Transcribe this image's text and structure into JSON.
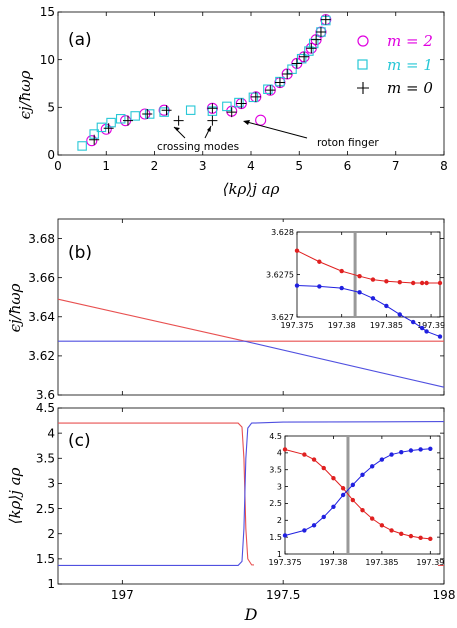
{
  "chart_data": [
    {
      "id": "a",
      "type": "scatter",
      "panel_label": "(a)",
      "xlabel": "⟨k_ρ⟩_j a_ρ",
      "ylabel": "ε_j / ħω_ρ",
      "xlim": [
        0,
        8
      ],
      "ylim": [
        0,
        15
      ],
      "xticks": [
        0,
        1,
        2,
        3,
        4,
        5,
        6,
        7,
        8
      ],
      "yticks": [
        0,
        5,
        10,
        15
      ],
      "legend_position": "top-right",
      "series": [
        {
          "name": "m = 2",
          "marker": "circle",
          "color": "#e000e0",
          "points": [
            [
              0.7,
              1.5
            ],
            [
              1.0,
              2.7
            ],
            [
              1.4,
              3.6
            ],
            [
              1.8,
              4.3
            ],
            [
              2.2,
              4.7
            ],
            [
              3.2,
              4.9
            ],
            [
              3.6,
              4.6
            ],
            [
              3.8,
              5.4
            ],
            [
              4.1,
              6.1
            ],
            [
              4.4,
              6.8
            ],
            [
              4.6,
              7.6
            ],
            [
              4.75,
              8.5
            ],
            [
              4.95,
              9.6
            ],
            [
              5.1,
              10.3
            ],
            [
              5.25,
              11.2
            ],
            [
              5.35,
              12.1
            ],
            [
              5.45,
              12.9
            ],
            [
              5.55,
              14.2
            ],
            [
              4.2,
              3.65
            ]
          ]
        },
        {
          "name": "m = 1",
          "marker": "square",
          "color": "#27c7d6",
          "points": [
            [
              0.5,
              0.95
            ],
            [
              0.75,
              2.2
            ],
            [
              0.9,
              2.9
            ],
            [
              1.1,
              3.4
            ],
            [
              1.3,
              3.8
            ],
            [
              1.6,
              4.1
            ],
            [
              1.9,
              4.3
            ],
            [
              2.2,
              4.5
            ],
            [
              2.75,
              4.7
            ],
            [
              3.2,
              4.6
            ],
            [
              3.5,
              5.1
            ],
            [
              3.75,
              5.5
            ],
            [
              4.05,
              6.05
            ],
            [
              4.35,
              6.9
            ],
            [
              4.6,
              7.7
            ],
            [
              4.85,
              9.0
            ],
            [
              5.05,
              10.1
            ],
            [
              5.2,
              10.9
            ],
            [
              5.3,
              11.7
            ],
            [
              5.45,
              12.9
            ],
            [
              5.55,
              14.1
            ]
          ]
        },
        {
          "name": "m = 0",
          "marker": "plus",
          "color": "#000000",
          "points": [
            [
              0.75,
              1.6
            ],
            [
              1.05,
              2.8
            ],
            [
              1.45,
              3.6
            ],
            [
              1.85,
              4.3
            ],
            [
              2.25,
              4.7
            ],
            [
              2.5,
              3.6
            ],
            [
              3.2,
              4.9
            ],
            [
              3.2,
              3.6
            ],
            [
              3.6,
              4.5
            ],
            [
              3.8,
              5.4
            ],
            [
              4.1,
              6.1
            ],
            [
              4.4,
              6.8
            ],
            [
              4.6,
              7.6
            ],
            [
              4.75,
              8.5
            ],
            [
              4.95,
              9.6
            ],
            [
              5.1,
              10.3
            ],
            [
              5.25,
              11.2
            ],
            [
              5.35,
              12.1
            ],
            [
              5.45,
              12.9
            ],
            [
              5.55,
              14.2
            ]
          ]
        }
      ],
      "annotations": [
        {
          "text": "crossing modes",
          "arrows_to": [
            [
              2.5,
              3.6
            ],
            [
              3.2,
              3.6
            ]
          ]
        },
        {
          "text": "roton finger",
          "arrows_to": [
            [
              4.3,
              3.65
            ]
          ]
        }
      ]
    },
    {
      "id": "b",
      "type": "line",
      "panel_label": "(b)",
      "xlabel": "D",
      "ylabel": "ε_j / ħω_ρ",
      "xlim": [
        196.8,
        198
      ],
      "ylim": [
        3.6,
        3.69
      ],
      "yticks": [
        3.6,
        3.62,
        3.64,
        3.66,
        3.68
      ],
      "ytick_labels": [
        "3.6",
        "3.62",
        "3.64",
        "3.66",
        "3.68"
      ],
      "series": [
        {
          "name": "",
          "color": "#e85050",
          "x": [
            196.8,
            197.381,
            197.5,
            198
          ],
          "y": [
            3.649,
            3.62752,
            3.6275,
            3.6275
          ]
        },
        {
          "name": "",
          "color": "#5050e0",
          "x": [
            196.8,
            197.381,
            198
          ],
          "y": [
            3.6275,
            3.62748,
            3.604
          ]
        }
      ],
      "inset": {
        "xlim": [
          197.375,
          197.391
        ],
        "ylim": [
          3.627,
          3.628
        ],
        "xticks": [
          197.375,
          197.38,
          197.385,
          197.39
        ],
        "xtick_labels": [
          "197.375",
          "197.38",
          "197.385",
          "197.39"
        ],
        "yticks": [
          3.627,
          3.6275,
          3.628
        ],
        "ytick_labels": [
          "3.627",
          "3.6275",
          "3.628"
        ],
        "vline_x": 197.3815,
        "series": [
          {
            "name": "",
            "color": "#e02020",
            "x": [
              197.375,
              197.3775,
              197.38,
              197.382,
              197.3835,
              197.385,
              197.3865,
              197.388,
              197.389,
              197.3895,
              197.391
            ],
            "y": [
              3.62778,
              3.62765,
              3.62754,
              3.62748,
              3.62744,
              3.62742,
              3.62741,
              3.6274,
              3.6274,
              3.6274,
              3.6274
            ]
          },
          {
            "name": "",
            "color": "#2020e0",
            "x": [
              197.375,
              197.3775,
              197.38,
              197.382,
              197.3835,
              197.385,
              197.3865,
              197.388,
              197.389,
              197.3895,
              197.391
            ],
            "y": [
              3.62737,
              3.62736,
              3.62734,
              3.62729,
              3.62722,
              3.62713,
              3.62703,
              3.62694,
              3.62687,
              3.62683,
              3.62677
            ]
          }
        ]
      }
    },
    {
      "id": "c",
      "type": "line",
      "panel_label": "(c)",
      "xlabel": "D",
      "ylabel": "⟨k_ρ⟩_j a_ρ",
      "xlim": [
        196.8,
        198
      ],
      "ylim": [
        1,
        4.5
      ],
      "xticks": [
        197,
        197.5,
        198
      ],
      "xtick_labels": [
        "197",
        "197.5",
        "198"
      ],
      "yticks": [
        1,
        1.5,
        2,
        2.5,
        3,
        3.5,
        4,
        4.5
      ],
      "ytick_labels": [
        "1",
        "1.5",
        "2",
        "2.5",
        "3",
        "3.5",
        "4",
        "4.5"
      ],
      "series": [
        {
          "name": "",
          "color": "#e85050",
          "x": [
            196.8,
            197.36,
            197.372,
            197.378,
            197.381,
            197.384,
            197.39,
            197.402,
            197.5,
            198
          ],
          "y": [
            4.2,
            4.2,
            4.12,
            3.5,
            2.8,
            2.1,
            1.5,
            1.38,
            1.37,
            1.37
          ]
        },
        {
          "name": "",
          "color": "#5050e0",
          "x": [
            196.8,
            197.36,
            197.372,
            197.378,
            197.381,
            197.384,
            197.39,
            197.402,
            197.5,
            198
          ],
          "y": [
            1.37,
            1.37,
            1.45,
            2.1,
            2.8,
            3.5,
            4.1,
            4.2,
            4.22,
            4.23
          ]
        }
      ],
      "inset": {
        "xlim": [
          197.375,
          197.391
        ],
        "ylim": [
          1,
          4.5
        ],
        "xticks": [
          197.375,
          197.38,
          197.385,
          197.39
        ],
        "xtick_labels": [
          "197.375",
          "197.38",
          "197.385",
          "197.39"
        ],
        "yticks": [
          1,
          1.5,
          2,
          2.5,
          3,
          3.5,
          4,
          4.5
        ],
        "ytick_labels": [
          "1",
          "1.5",
          "2",
          "2.5",
          "3",
          "3.5",
          "4",
          "4.5"
        ],
        "vline_x": 197.3815,
        "series": [
          {
            "name": "",
            "color": "#e02020",
            "x": [
              197.375,
              197.377,
              197.378,
              197.379,
              197.38,
              197.381,
              197.382,
              197.383,
              197.384,
              197.385,
              197.386,
              197.387,
              197.388,
              197.389,
              197.39
            ],
            "y": [
              4.1,
              3.95,
              3.8,
              3.55,
              3.25,
              2.95,
              2.6,
              2.3,
              2.05,
              1.85,
              1.7,
              1.6,
              1.53,
              1.48,
              1.45
            ]
          },
          {
            "name": "",
            "color": "#2020e0",
            "x": [
              197.375,
              197.377,
              197.378,
              197.379,
              197.38,
              197.381,
              197.382,
              197.383,
              197.384,
              197.385,
              197.386,
              197.387,
              197.388,
              197.389,
              197.39
            ],
            "y": [
              1.55,
              1.7,
              1.85,
              2.1,
              2.4,
              2.75,
              3.05,
              3.35,
              3.6,
              3.8,
              3.95,
              4.02,
              4.07,
              4.1,
              4.12
            ]
          }
        ]
      }
    }
  ],
  "labels": {
    "panel_a": "(a)",
    "panel_b": "(b)",
    "panel_c": "(c)",
    "crossing": "crossing modes",
    "roton": "roton finger",
    "legend_m2": "m = 2",
    "legend_m1": "m = 1",
    "legend_m0": "m = 0",
    "ylabel_a": "ϵj/ħωρ",
    "xlabel_a": "⟨kρ⟩j aρ",
    "ylabel_b": "ϵj/ħωρ",
    "ylabel_c": "⟨kρ⟩j aρ",
    "xlabel_c": "D"
  },
  "colors": {
    "m2": "#e000e0",
    "m1": "#27c7d6",
    "m0": "#000000",
    "red": "#e85050",
    "blue": "#5050e0"
  }
}
